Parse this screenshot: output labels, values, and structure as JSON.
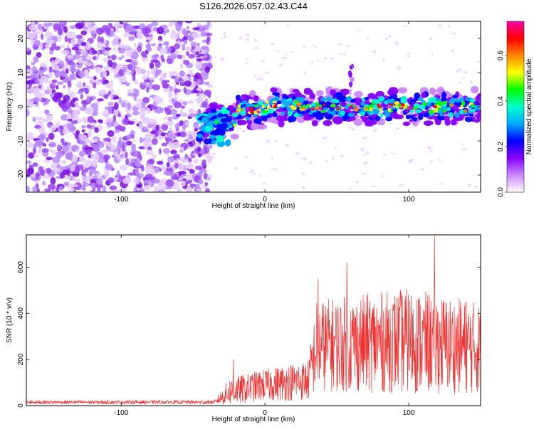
{
  "figure_title": "S126.2026.057.02.43.C44",
  "chart_data": [
    {
      "type": "heatmap",
      "panel": "spectrogram",
      "xlabel": "Height of straight line (km)",
      "ylabel": "Frequency (Hz)",
      "xlim": [
        -166,
        150
      ],
      "ylim": [
        -25,
        25
      ],
      "xticks": [
        -100,
        0,
        100
      ],
      "xtick_labels": [
        "-100",
        "0",
        "100"
      ],
      "yticks": [
        -20,
        -10,
        0,
        10,
        20
      ],
      "ytick_labels": [
        "-20",
        "-10",
        "0",
        "10",
        "20"
      ],
      "noise_region_x": [
        -166,
        -42
      ],
      "signal_region_x": [
        -48,
        150
      ],
      "signal_band_center_hz": 0,
      "signal_band_halfwidth_hz": 5,
      "signal_spike": {
        "x": 60,
        "freq_top": 12
      },
      "colorbar": {
        "label": "Normalized spectral amplitude",
        "range": [
          0.0,
          0.75
        ],
        "ticks": [
          0.0,
          0.2,
          0.4,
          0.6
        ],
        "tick_labels": [
          "0.0",
          "0.2",
          "0.4",
          "0.6"
        ],
        "colors": [
          "#ffffff",
          "#cc88ff",
          "#8800ff",
          "#0000ff",
          "#00aaff",
          "#00ffcc",
          "#00ff00",
          "#ffff00",
          "#ff8800",
          "#ff0000",
          "#ff00aa"
        ]
      }
    },
    {
      "type": "line",
      "panel": "snr",
      "xlabel": "Height of straight line (km)",
      "ylabel": "SNR (10 * v/v)",
      "xlim": [
        -166,
        150
      ],
      "ylim": [
        0,
        740
      ],
      "xticks": [
        -100,
        0,
        100
      ],
      "xtick_labels": [
        "-100",
        "0",
        "100"
      ],
      "yticks": [
        0,
        200,
        400,
        600
      ],
      "ytick_labels": [
        "0",
        "200",
        "400",
        "600"
      ],
      "color": "#ee3333",
      "series_profile": [
        {
          "x": -166,
          "base": 15,
          "spread": 8
        },
        {
          "x": -35,
          "base": 15,
          "spread": 8
        },
        {
          "x": -25,
          "base": 60,
          "spread": 60
        },
        {
          "x": 0,
          "base": 90,
          "spread": 70
        },
        {
          "x": 30,
          "base": 110,
          "spread": 90
        },
        {
          "x": 36,
          "base": 260,
          "spread": 200
        },
        {
          "x": 100,
          "base": 280,
          "spread": 230
        },
        {
          "x": 150,
          "base": 250,
          "spread": 200
        }
      ],
      "peaks": [
        {
          "x": -22,
          "y": 200
        },
        {
          "x": 37,
          "y": 550
        },
        {
          "x": 57,
          "y": 620
        },
        {
          "x": 118,
          "y": 735
        },
        {
          "x": 140,
          "y": 450
        }
      ]
    }
  ]
}
